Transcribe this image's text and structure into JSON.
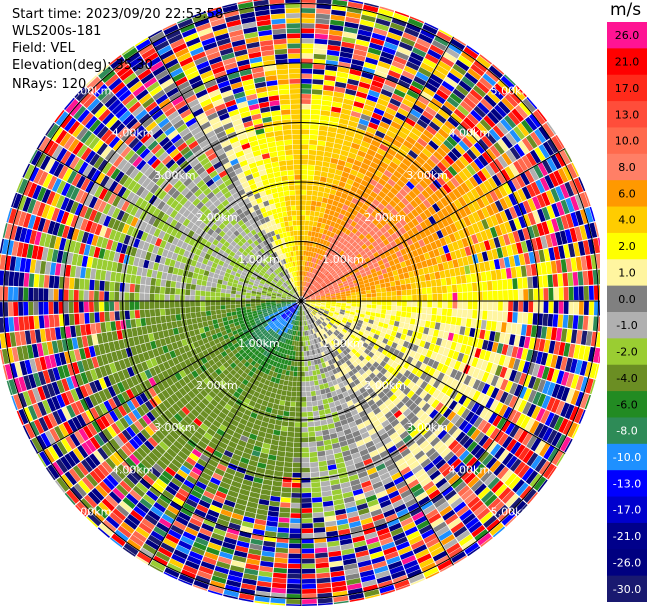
{
  "header": {
    "start_time": "Start time: 2023/09/20 22:53:58",
    "instrument": "WLS200s-181",
    "field": "Field: VEL",
    "elevation": "Elevation(deg): 35.30",
    "nrays": "NRays: 120"
  },
  "colorbar": {
    "unit": "m/s",
    "levels": [
      {
        "label": "26.0",
        "color": "#ff1493"
      },
      {
        "label": "21.0",
        "color": "#ff0000"
      },
      {
        "label": "17.0",
        "color": "#ff2a1a"
      },
      {
        "label": "13.0",
        "color": "#ff4d3a"
      },
      {
        "label": "10.0",
        "color": "#ff6a4d"
      },
      {
        "label": "8.0",
        "color": "#ff7f66"
      },
      {
        "label": "6.0",
        "color": "#ff9900"
      },
      {
        "label": "4.0",
        "color": "#ffcc00"
      },
      {
        "label": "2.0",
        "color": "#ffff00"
      },
      {
        "label": "1.0",
        "color": "#fff5a0"
      },
      {
        "label": "0.0",
        "color": "#808080"
      },
      {
        "label": "-1.0",
        "color": "#b0b0b0"
      },
      {
        "label": "-2.0",
        "color": "#9acd32"
      },
      {
        "label": "-4.0",
        "color": "#6b8e23"
      },
      {
        "label": "-6.0",
        "color": "#228b22"
      },
      {
        "label": "-8.0",
        "color": "#2e8b57"
      },
      {
        "label": "-10.0",
        "color": "#1e90ff"
      },
      {
        "label": "-13.0",
        "color": "#0000ff"
      },
      {
        "label": "-17.0",
        "color": "#0000cd"
      },
      {
        "label": "-21.0",
        "color": "#00008b"
      },
      {
        "label": "-26.0",
        "color": "#000080"
      },
      {
        "label": "-30.0",
        "color": "#191970"
      }
    ]
  },
  "chart_data": {
    "type": "heatmap",
    "projection": "polar-ppi",
    "field": "VEL",
    "units": "m/s",
    "n_rays": 120,
    "range_rings": [
      {
        "range_km": 1.0,
        "label": "1.00km"
      },
      {
        "range_km": 2.0,
        "label": "2.00km"
      },
      {
        "range_km": 3.0,
        "label": "3.00km"
      },
      {
        "range_km": 4.0,
        "label": "4.00km"
      },
      {
        "range_km": 5.0,
        "label": "5.00km"
      }
    ],
    "max_range_km": 5.1,
    "sectors": [
      {
        "azimuth_from": 0,
        "azimuth_to": 90,
        "dominant": "orange-red (2 to 10 m/s)"
      },
      {
        "azimuth_from": 90,
        "azimuth_to": 180,
        "dominant": "yellow / grey (0 to 4 m/s)"
      },
      {
        "azimuth_from": 180,
        "azimuth_to": 270,
        "dominant": "green / blue (-1 to -10 m/s)"
      },
      {
        "azimuth_from": 270,
        "azimuth_to": 360,
        "dominant": "grey / olive (0 to -4 m/s)"
      }
    ],
    "noise_beyond_km": 3.2,
    "grid": true
  }
}
